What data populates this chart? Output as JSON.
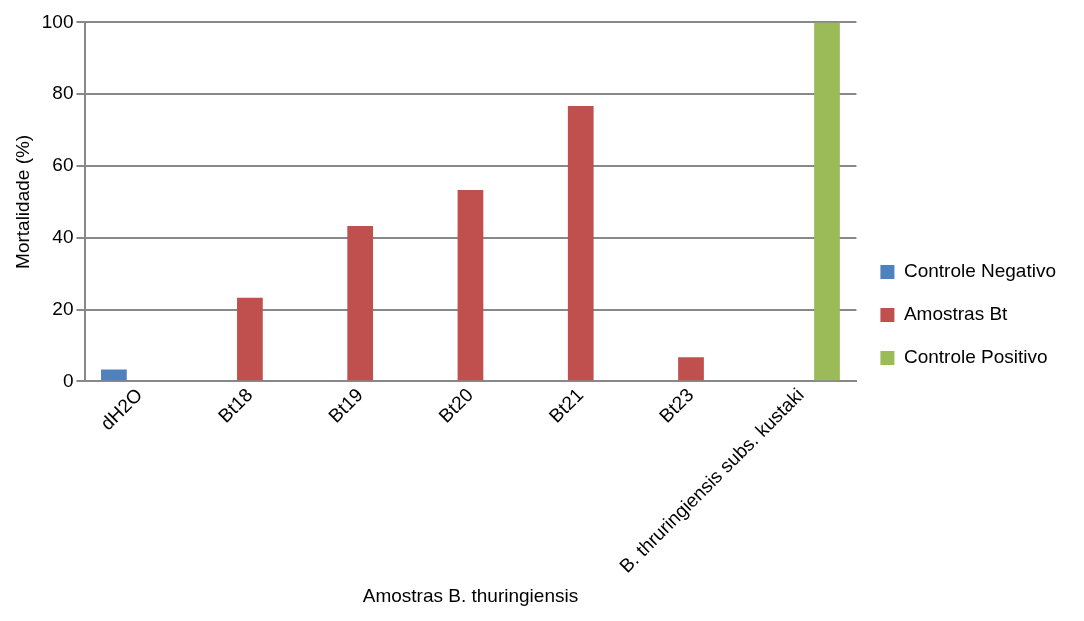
{
  "chart_data": {
    "type": "bar",
    "xlabel": "Amostras B. thuringiensis",
    "ylabel": "Mortalidade (%)",
    "categories": [
      "dH2O",
      "Bt18",
      "Bt19",
      "Bt20",
      "Bt21",
      "Bt23",
      "B. thruringiensis subs. kustaki"
    ],
    "series": [
      {
        "name": "Controle Negativo",
        "color": "#4f81bd",
        "values": [
          3.3,
          null,
          null,
          null,
          null,
          null,
          null
        ]
      },
      {
        "name": "Amostras Bt",
        "color": "#c0504d",
        "values": [
          null,
          23.3,
          43.3,
          53.3,
          76.7,
          6.7,
          null
        ]
      },
      {
        "name": "Controle Positivo",
        "color": "#9bbb59",
        "values": [
          null,
          null,
          null,
          null,
          null,
          null,
          100
        ]
      }
    ],
    "ylim": [
      0,
      100
    ],
    "yticks": [
      0,
      20,
      40,
      60,
      80,
      100
    ],
    "grid": "y",
    "legend": "right"
  }
}
